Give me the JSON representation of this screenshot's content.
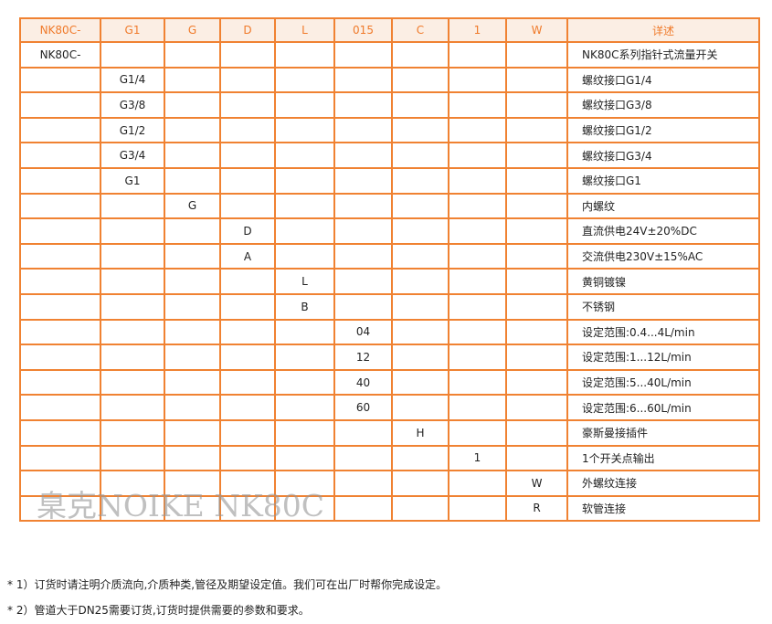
{
  "header": [
    "NK80C-",
    "G1",
    "G",
    "D",
    "L",
    "015",
    "C",
    "1",
    "W",
    "详述"
  ],
  "rows": [
    [
      "NK80C-",
      "",
      "",
      "",
      "",
      "",
      "",
      "",
      "",
      "NK80C系列指针式流量开关"
    ],
    [
      "",
      "G1/4",
      "",
      "",
      "",
      "",
      "",
      "",
      "",
      "螺纹接口G1/4"
    ],
    [
      "",
      "G3/8",
      "",
      "",
      "",
      "",
      "",
      "",
      "",
      "螺纹接口G3/8"
    ],
    [
      "",
      "G1/2",
      "",
      "",
      "",
      "",
      "",
      "",
      "",
      "螺纹接口G1/2"
    ],
    [
      "",
      "G3/4",
      "",
      "",
      "",
      "",
      "",
      "",
      "",
      "螺纹接口G3/4"
    ],
    [
      "",
      "G1",
      "",
      "",
      "",
      "",
      "",
      "",
      "",
      "螺纹接口G1"
    ],
    [
      "",
      "",
      "G",
      "",
      "",
      "",
      "",
      "",
      "",
      "内螺纹"
    ],
    [
      "",
      "",
      "",
      "D",
      "",
      "",
      "",
      "",
      "",
      "直流供电24V±20%DC"
    ],
    [
      "",
      "",
      "",
      "A",
      "",
      "",
      "",
      "",
      "",
      "交流供电230V±15%AC"
    ],
    [
      "",
      "",
      "",
      "",
      "L",
      "",
      "",
      "",
      "",
      "黄铜镀镍"
    ],
    [
      "",
      "",
      "",
      "",
      "B",
      "",
      "",
      "",
      "",
      "不锈钢"
    ],
    [
      "",
      "",
      "",
      "",
      "",
      "04",
      "",
      "",
      "",
      "设定范围:0.4...4L/min"
    ],
    [
      "",
      "",
      "",
      "",
      "",
      "12",
      "",
      "",
      "",
      "设定范围:1...12L/min"
    ],
    [
      "",
      "",
      "",
      "",
      "",
      "40",
      "",
      "",
      "",
      "设定范围:5...40L/min"
    ],
    [
      "",
      "",
      "",
      "",
      "",
      "60",
      "",
      "",
      "",
      "设定范围:6...60L/min"
    ],
    [
      "",
      "",
      "",
      "",
      "",
      "",
      "H",
      "",
      "",
      "豪斯曼接插件"
    ],
    [
      "",
      "",
      "",
      "",
      "",
      "",
      "",
      "1",
      "",
      "1个开关点输出"
    ],
    [
      "",
      "",
      "",
      "",
      "",
      "",
      "",
      "",
      "W",
      "外螺纹连接"
    ],
    [
      "",
      "",
      "",
      "",
      "",
      "",
      "",
      "",
      "R",
      "软管连接"
    ]
  ],
  "watermark": "臬克NOIKE NK80C",
  "notes": [
    "* 1）订货时请注明介质流向,介质种类,管径及期望设定值。我们可在出厂时帮你完成设定。",
    "* 2）管道大于DN25需要订货,订货时提供需要的参数和要求。"
  ],
  "colors": {
    "border": "#f08232",
    "header_bg": "#fbeee4",
    "header_text": "#f07a2a"
  }
}
